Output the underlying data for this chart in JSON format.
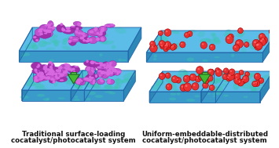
{
  "bg_color": "#ffffff",
  "left_title_line1": "Traditional surface-loading",
  "left_title_line2": "cocatalyst/photocatalyst system",
  "right_title_line1": "Uniform-embeddable-distributed",
  "right_title_line2": "cocatalyst/photocatalyst system",
  "red_dot_color": "#e83030",
  "arrow_green": "#55cc44",
  "arrow_dark": "#226622",
  "arrow_mid": "#44bb33",
  "fig_width": 3.55,
  "fig_height": 1.89,
  "dpi": 100
}
